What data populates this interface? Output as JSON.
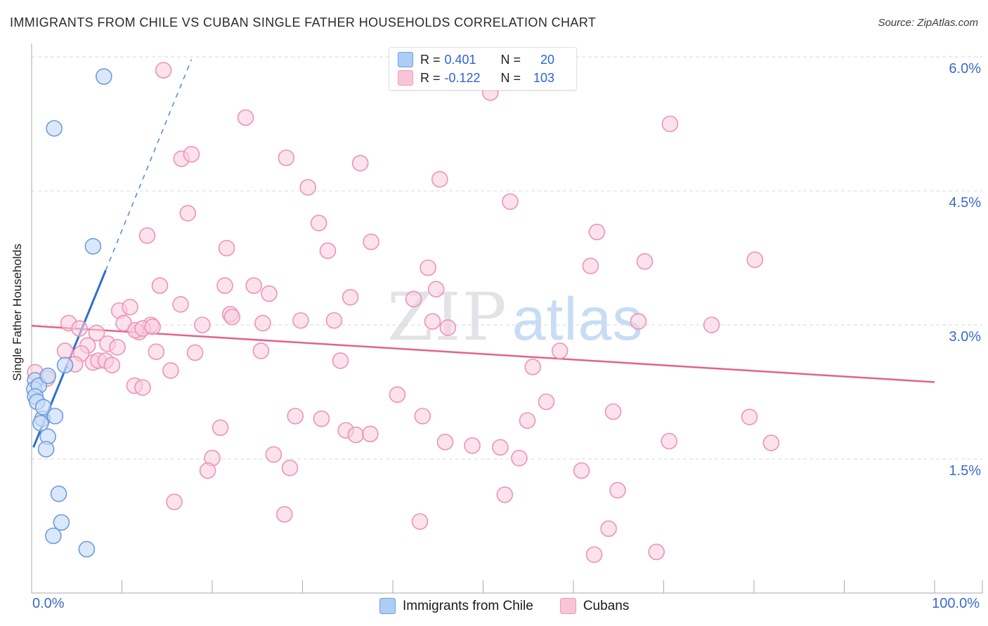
{
  "header": {
    "title": "IMMIGRANTS FROM CHILE VS CUBAN SINGLE FATHER HOUSEHOLDS CORRELATION CHART",
    "source": "Source: ZipAtlas.com"
  },
  "legend_box": {
    "rows": [
      {
        "r_label": "R =",
        "r_value": "0.401",
        "n_label": "N =",
        "n_value": "20"
      },
      {
        "r_label": "R =",
        "r_value": "-0.122",
        "n_label": "N =",
        "n_value": "103"
      }
    ]
  },
  "watermark": {
    "zip": "ZIP",
    "atlas": "atlas"
  },
  "bottom_legend": {
    "chile_label": "Immigrants from Chile",
    "cubans_label": "Cubans"
  },
  "colors": {
    "chile_fill": "#c7dbf7",
    "chile_stroke": "#6f9cdb",
    "cubans_fill": "#f9cfdf",
    "cubans_stroke": "#ef93b4",
    "chile_trend": "#2e6fce",
    "cubans_trend": "#e2638b",
    "gridline": "#d9d9d9",
    "axis": "#aaaaaa",
    "tick_label": "#3a6bc9"
  },
  "chart_data": {
    "type": "scatter",
    "title": "Immigrants from Chile vs Cuban Single Father Households",
    "xlabel_left": "0.0%",
    "xlabel_right": "100.0%",
    "ylabel": "Single Father Households",
    "xlim": [
      0,
      100
    ],
    "ylim": [
      0,
      6.3
    ],
    "y_ticks": [
      {
        "value": 6.0,
        "label": "6.0%"
      },
      {
        "value": 4.5,
        "label": "4.5%"
      },
      {
        "value": 3.0,
        "label": "3.0%"
      },
      {
        "value": 1.5,
        "label": "1.5%"
      }
    ],
    "x_tick_step_pct": 10,
    "grid": "dashed-horizontal",
    "series": [
      {
        "name": "Immigrants from Chile",
        "r": 0.401,
        "n": 20,
        "points": [
          [
            0.4,
            2.38
          ],
          [
            0.3,
            2.28
          ],
          [
            0.8,
            2.32
          ],
          [
            0.4,
            2.2
          ],
          [
            0.6,
            2.14
          ],
          [
            1.8,
            2.43
          ],
          [
            1.2,
            1.95
          ],
          [
            1.0,
            1.9
          ],
          [
            1.3,
            2.08
          ],
          [
            2.6,
            1.98
          ],
          [
            1.8,
            1.75
          ],
          [
            1.6,
            1.61
          ],
          [
            3.7,
            2.55
          ],
          [
            2.5,
            5.2
          ],
          [
            8.0,
            5.78
          ],
          [
            6.8,
            3.88
          ],
          [
            3.0,
            1.11
          ],
          [
            3.3,
            0.79
          ],
          [
            2.4,
            0.64
          ],
          [
            6.1,
            0.49
          ]
        ],
        "trend": {
          "x_start": 0.2,
          "y_start": 1.63,
          "x_solid_end": 8.2,
          "y_solid_end": 3.61,
          "x_dash_end": 17.7,
          "y_dash_end": 5.97
        }
      },
      {
        "name": "Cubans",
        "r": -0.122,
        "n": 103,
        "points": [
          [
            14.6,
            5.85
          ],
          [
            50.8,
            5.6
          ],
          [
            23.7,
            5.32
          ],
          [
            70.7,
            5.25
          ],
          [
            16.6,
            4.86
          ],
          [
            17.7,
            4.91
          ],
          [
            28.2,
            4.87
          ],
          [
            36.4,
            4.81
          ],
          [
            30.6,
            4.54
          ],
          [
            17.3,
            4.25
          ],
          [
            12.8,
            4.0
          ],
          [
            31.8,
            4.14
          ],
          [
            37.6,
            3.93
          ],
          [
            32.8,
            3.83
          ],
          [
            21.6,
            3.86
          ],
          [
            45.2,
            4.63
          ],
          [
            53.0,
            4.38
          ],
          [
            62.6,
            4.04
          ],
          [
            61.9,
            3.66
          ],
          [
            67.9,
            3.71
          ],
          [
            80.1,
            3.73
          ],
          [
            43.9,
            3.64
          ],
          [
            44.8,
            3.4
          ],
          [
            42.3,
            3.29
          ],
          [
            14.2,
            3.44
          ],
          [
            21.4,
            3.44
          ],
          [
            24.6,
            3.44
          ],
          [
            26.3,
            3.35
          ],
          [
            16.5,
            3.23
          ],
          [
            35.3,
            3.31
          ],
          [
            9.7,
            3.16
          ],
          [
            10.9,
            3.2
          ],
          [
            11.9,
            2.92
          ],
          [
            13.2,
            3.0
          ],
          [
            18.9,
            3.0
          ],
          [
            22.0,
            3.12
          ],
          [
            22.2,
            3.09
          ],
          [
            25.6,
            3.02
          ],
          [
            29.8,
            3.05
          ],
          [
            33.5,
            3.05
          ],
          [
            44.4,
            3.04
          ],
          [
            46.1,
            2.97
          ],
          [
            67.2,
            3.04
          ],
          [
            75.3,
            3.0
          ],
          [
            4.1,
            3.02
          ],
          [
            5.3,
            2.96
          ],
          [
            7.2,
            2.91
          ],
          [
            6.2,
            2.77
          ],
          [
            8.4,
            2.79
          ],
          [
            9.5,
            2.75
          ],
          [
            5.5,
            2.68
          ],
          [
            6.8,
            2.58
          ],
          [
            4.8,
            2.56
          ],
          [
            7.4,
            2.6
          ],
          [
            8.2,
            2.6
          ],
          [
            8.9,
            2.55
          ],
          [
            10.2,
            3.02
          ],
          [
            11.5,
            2.94
          ],
          [
            12.3,
            2.96
          ],
          [
            13.4,
            2.98
          ],
          [
            13.8,
            2.7
          ],
          [
            15.4,
            2.49
          ],
          [
            11.4,
            2.32
          ],
          [
            12.3,
            2.3
          ],
          [
            18.1,
            2.69
          ],
          [
            25.4,
            2.71
          ],
          [
            34.2,
            2.6
          ],
          [
            40.5,
            2.22
          ],
          [
            29.2,
            1.98
          ],
          [
            32.1,
            1.95
          ],
          [
            34.8,
            1.82
          ],
          [
            35.9,
            1.77
          ],
          [
            37.5,
            1.78
          ],
          [
            20.9,
            1.85
          ],
          [
            43.3,
            1.98
          ],
          [
            45.8,
            1.69
          ],
          [
            48.8,
            1.65
          ],
          [
            20.0,
            1.51
          ],
          [
            19.5,
            1.37
          ],
          [
            26.8,
            1.55
          ],
          [
            28.6,
            1.4
          ],
          [
            28.0,
            0.88
          ],
          [
            43.0,
            0.8
          ],
          [
            15.8,
            1.02
          ],
          [
            58.5,
            2.71
          ],
          [
            55.5,
            2.53
          ],
          [
            57.0,
            2.14
          ],
          [
            54.9,
            1.93
          ],
          [
            64.4,
            2.03
          ],
          [
            51.9,
            1.63
          ],
          [
            54.0,
            1.51
          ],
          [
            70.6,
            1.7
          ],
          [
            79.5,
            1.97
          ],
          [
            81.9,
            1.68
          ],
          [
            52.4,
            1.1
          ],
          [
            60.9,
            1.37
          ],
          [
            64.9,
            1.15
          ],
          [
            63.9,
            0.72
          ],
          [
            62.3,
            0.43
          ],
          [
            69.2,
            0.46
          ],
          [
            3.7,
            2.71
          ],
          [
            0.4,
            2.47
          ],
          [
            1.7,
            2.4
          ]
        ],
        "trend": {
          "x_start": 0,
          "y_start": 2.99,
          "x_end": 100,
          "y_end": 2.36
        }
      }
    ]
  }
}
